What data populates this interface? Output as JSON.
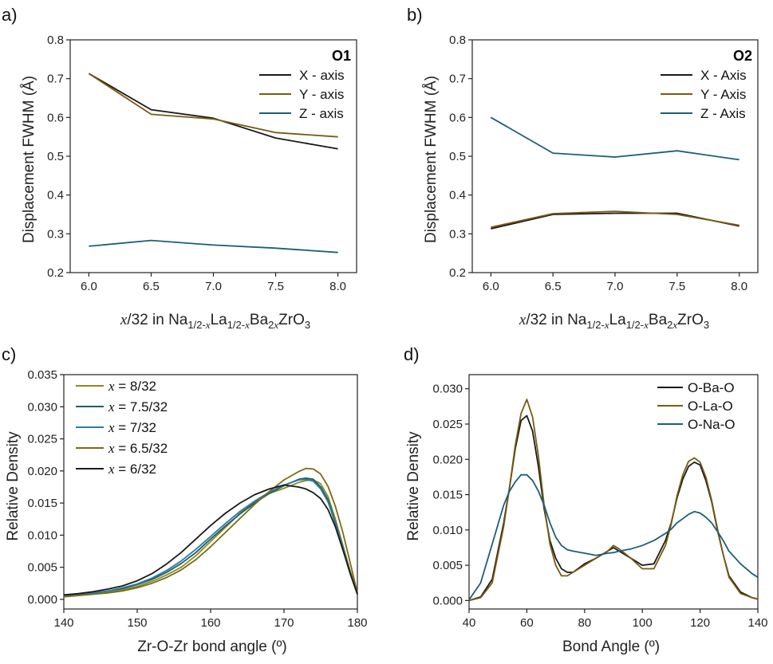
{
  "chart_data": [
    {
      "panel_label": "a)",
      "type": "line",
      "xlabel": "x/32 in Na1/2-xLa1/2-xBa2xZrO3",
      "xlabel_parts": {
        "var": "x",
        "pre": "/32 in Na",
        "s1": "1/2-",
        "s1v": "x",
        "p2": "La",
        "s2": "1/2-",
        "s2v": "x",
        "p3": "Ba",
        "s3": "2",
        "s3v": "x",
        "p4": "ZrO",
        "s4": "3"
      },
      "ylabel": "Displacement FWHM (Å)",
      "xlim": [
        5.85,
        8.15
      ],
      "ylim": [
        0.2,
        0.8
      ],
      "xticks": [
        6.0,
        6.5,
        7.0,
        7.5,
        8.0
      ],
      "xtick_labels": [
        "6.0",
        "6.5",
        "7.0",
        "7.5",
        "8.0"
      ],
      "yticks": [
        0.2,
        0.3,
        0.4,
        0.5,
        0.6,
        0.7,
        0.8
      ],
      "ytick_labels": [
        "0.2",
        "0.3",
        "0.4",
        "0.5",
        "0.6",
        "0.7",
        "0.8"
      ],
      "legend_title": "O1",
      "legend_position": "top-right",
      "x": [
        6.0,
        6.5,
        7.0,
        7.5,
        8.0
      ],
      "series": [
        {
          "name": "X - axis",
          "color": "#1a1a1a",
          "y": [
            0.713,
            0.62,
            0.598,
            0.547,
            0.519
          ]
        },
        {
          "name": "Y - axis",
          "color": "#7a5a12",
          "y": [
            0.713,
            0.608,
            0.596,
            0.561,
            0.55
          ]
        },
        {
          "name": "Z - axis",
          "color": "#1b5e7a",
          "y": [
            0.268,
            0.283,
            0.271,
            0.263,
            0.252
          ]
        }
      ]
    },
    {
      "panel_label": "b)",
      "type": "line",
      "xlabel": "x/32 in Na1/2-xLa1/2-xBa2xZrO3",
      "xlabel_parts": {
        "var": "x",
        "pre": "/32 in Na",
        "s1": "1/2-",
        "s1v": "x",
        "p2": "La",
        "s2": "1/2-",
        "s2v": "x",
        "p3": "Ba",
        "s3": "2",
        "s3v": "x",
        "p4": "ZrO",
        "s4": "3"
      },
      "ylabel": "Displacement FWHM (Å)",
      "xlim": [
        5.85,
        8.15
      ],
      "ylim": [
        0.2,
        0.8
      ],
      "xticks": [
        6.0,
        6.5,
        7.0,
        7.5,
        8.0
      ],
      "xtick_labels": [
        "6.0",
        "6.5",
        "7.0",
        "7.5",
        "8.0"
      ],
      "yticks": [
        0.2,
        0.3,
        0.4,
        0.5,
        0.6,
        0.7,
        0.8
      ],
      "ytick_labels": [
        "0.2",
        "0.3",
        "0.4",
        "0.5",
        "0.6",
        "0.7",
        "0.8"
      ],
      "legend_title": "O2",
      "legend_position": "top-right",
      "x": [
        6.0,
        6.5,
        7.0,
        7.5,
        8.0
      ],
      "series": [
        {
          "name": "X - Axis",
          "color": "#1a1a1a",
          "y": [
            0.313,
            0.35,
            0.353,
            0.353,
            0.32
          ]
        },
        {
          "name": "Y - Axis",
          "color": "#7a5a12",
          "y": [
            0.317,
            0.352,
            0.358,
            0.35,
            0.322
          ]
        },
        {
          "name": "Z - Axis",
          "color": "#1b5e7a",
          "y": [
            0.6,
            0.508,
            0.498,
            0.514,
            0.491
          ]
        }
      ]
    },
    {
      "panel_label": "c)",
      "type": "line",
      "xlabel": "Zr-O-Zr bond angle (º)",
      "ylabel": "Relative Density",
      "xlim": [
        140,
        180
      ],
      "ylim": [
        -0.0015,
        0.035
      ],
      "xticks": [
        140,
        150,
        160,
        170,
        180
      ],
      "xtick_labels": [
        "140",
        "150",
        "160",
        "170",
        "180"
      ],
      "yticks": [
        0.0,
        0.005,
        0.01,
        0.015,
        0.02,
        0.025,
        0.03,
        0.035
      ],
      "ytick_labels": [
        "0.000",
        "0.005",
        "0.010",
        "0.015",
        "0.020",
        "0.025",
        "0.030",
        "0.035"
      ],
      "legend_position": "top-left",
      "x": [
        140,
        142,
        144,
        146,
        148,
        150,
        152,
        154,
        156,
        158,
        160,
        162,
        164,
        166,
        168,
        170,
        172,
        173,
        174,
        175,
        176,
        177,
        178,
        179,
        180
      ],
      "series": [
        {
          "name": "x = 8/32",
          "legend": "8/32",
          "color": "#8d8a22",
          "y": [
            0.0005,
            0.0007,
            0.0009,
            0.0011,
            0.0015,
            0.002,
            0.0028,
            0.0038,
            0.005,
            0.0068,
            0.009,
            0.0112,
            0.0134,
            0.0152,
            0.0165,
            0.0173,
            0.0182,
            0.0185,
            0.0186,
            0.018,
            0.016,
            0.0125,
            0.0085,
            0.0045,
            0.001
          ]
        },
        {
          "name": "x = 7.5/32",
          "legend": "7.5/32",
          "color": "#1f5e66",
          "y": [
            0.0006,
            0.0008,
            0.001,
            0.0013,
            0.0017,
            0.0023,
            0.0031,
            0.0042,
            0.0056,
            0.0073,
            0.0094,
            0.0114,
            0.0133,
            0.015,
            0.0165,
            0.0177,
            0.0187,
            0.0189,
            0.0187,
            0.0175,
            0.0155,
            0.012,
            0.0082,
            0.0042,
            0.0008
          ]
        },
        {
          "name": "x = 7/32",
          "legend": "7/32",
          "color": "#2a7ba5",
          "y": [
            0.0006,
            0.0008,
            0.001,
            0.0013,
            0.0018,
            0.0024,
            0.0033,
            0.0045,
            0.006,
            0.0078,
            0.0098,
            0.0118,
            0.0137,
            0.0153,
            0.0167,
            0.0178,
            0.0186,
            0.0187,
            0.0184,
            0.0172,
            0.0152,
            0.0118,
            0.008,
            0.0041,
            0.0008
          ]
        },
        {
          "name": "x = 6.5/32",
          "legend": "6.5/32",
          "color": "#7a6a14",
          "y": [
            0.0004,
            0.0006,
            0.0008,
            0.001,
            0.0013,
            0.0018,
            0.0025,
            0.0034,
            0.0046,
            0.0062,
            0.0082,
            0.0104,
            0.0126,
            0.0148,
            0.0168,
            0.0186,
            0.0199,
            0.0204,
            0.0203,
            0.0195,
            0.0176,
            0.0145,
            0.0105,
            0.0058,
            0.001
          ]
        },
        {
          "name": "x = 6/32",
          "legend": "6/32",
          "color": "#1a1a1a",
          "y": [
            0.0007,
            0.0009,
            0.0012,
            0.0016,
            0.0021,
            0.0029,
            0.004,
            0.0055,
            0.0073,
            0.0094,
            0.0115,
            0.0134,
            0.015,
            0.0163,
            0.0172,
            0.0178,
            0.0175,
            0.0172,
            0.0166,
            0.0157,
            0.014,
            0.0113,
            0.0078,
            0.0041,
            0.0008
          ]
        }
      ]
    },
    {
      "panel_label": "d)",
      "type": "line",
      "xlabel": "Bond Angle (º)",
      "ylabel": "Relative Density",
      "xlim": [
        40,
        140
      ],
      "ylim": [
        -0.0012,
        0.032
      ],
      "xticks": [
        40,
        60,
        80,
        100,
        120,
        140
      ],
      "xtick_labels": [
        "40",
        "60",
        "80",
        "100",
        "120",
        "140"
      ],
      "yticks": [
        0.0,
        0.005,
        0.01,
        0.015,
        0.02,
        0.025,
        0.03
      ],
      "ytick_labels": [
        "0.000",
        "0.005",
        "0.010",
        "0.015",
        "0.020",
        "0.025",
        "0.030"
      ],
      "legend_position": "top-right",
      "x": [
        40,
        44,
        48,
        52,
        54,
        56,
        58,
        60,
        62,
        64,
        66,
        68,
        70,
        72,
        74,
        76,
        80,
        84,
        88,
        90,
        92,
        96,
        100,
        104,
        108,
        110,
        112,
        114,
        116,
        118,
        120,
        122,
        124,
        126,
        128,
        130,
        134,
        138,
        140
      ],
      "series": [
        {
          "name": "O-Ba-O",
          "color": "#1a1a1a",
          "y": [
            0.0,
            0.0005,
            0.003,
            0.011,
            0.016,
            0.0215,
            0.0255,
            0.0262,
            0.024,
            0.019,
            0.013,
            0.0085,
            0.006,
            0.0045,
            0.004,
            0.004,
            0.0052,
            0.006,
            0.007,
            0.0075,
            0.007,
            0.006,
            0.005,
            0.0052,
            0.0085,
            0.011,
            0.0145,
            0.0172,
            0.019,
            0.0196,
            0.0192,
            0.017,
            0.014,
            0.01,
            0.0065,
            0.0035,
            0.0012,
            0.0004,
            0.0002
          ]
        },
        {
          "name": "O-La-O",
          "color": "#7a5a12",
          "y": [
            0.0,
            0.0004,
            0.0025,
            0.0105,
            0.016,
            0.022,
            0.0265,
            0.0285,
            0.026,
            0.0205,
            0.0135,
            0.008,
            0.005,
            0.0035,
            0.0035,
            0.004,
            0.005,
            0.006,
            0.007,
            0.0078,
            0.0073,
            0.006,
            0.0045,
            0.0045,
            0.0078,
            0.0108,
            0.0148,
            0.0178,
            0.0197,
            0.0202,
            0.0196,
            0.0175,
            0.0142,
            0.0102,
            0.0065,
            0.0033,
            0.001,
            0.0004,
            0.0002
          ]
        },
        {
          "name": "O-Na-O",
          "color": "#1b5e7a",
          "y": [
            0.0001,
            0.0025,
            0.008,
            0.0135,
            0.0155,
            0.0168,
            0.0178,
            0.0178,
            0.017,
            0.0155,
            0.0135,
            0.011,
            0.009,
            0.0078,
            0.0072,
            0.007,
            0.0067,
            0.0064,
            0.0067,
            0.0068,
            0.007,
            0.0073,
            0.0078,
            0.0085,
            0.0095,
            0.0101,
            0.011,
            0.0116,
            0.0122,
            0.0126,
            0.0124,
            0.0118,
            0.011,
            0.0098,
            0.0085,
            0.007,
            0.0052,
            0.0038,
            0.0033
          ]
        }
      ]
    }
  ]
}
